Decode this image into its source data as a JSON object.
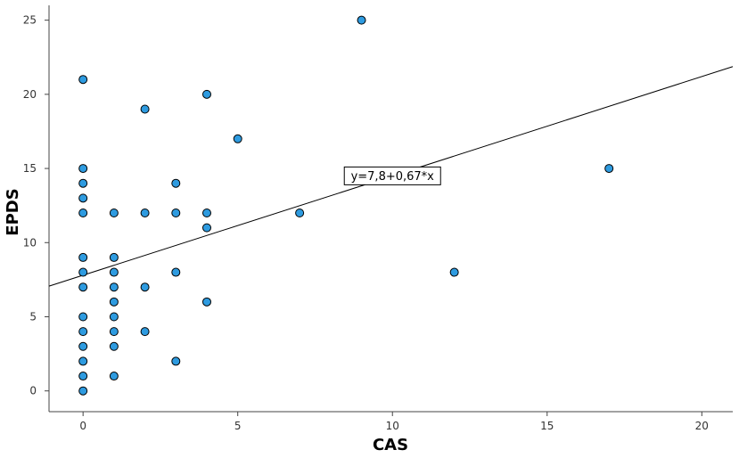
{
  "chart_data": {
    "type": "scatter",
    "xlabel": "CAS",
    "ylabel": "EPDS",
    "xlim": [
      -1.1,
      21
    ],
    "ylim": [
      -1.4,
      26
    ],
    "xticks": [
      0,
      5,
      10,
      15,
      20
    ],
    "yticks": [
      0,
      5,
      10,
      15,
      20,
      25
    ],
    "grid": false,
    "point_color": "#2E9BE0",
    "fit": {
      "label": "y=7,8+0,67*x",
      "intercept": 7.8,
      "slope": 0.67,
      "label_anchor": [
        10,
        14.5
      ]
    },
    "points": [
      {
        "x": 0,
        "y": 0
      },
      {
        "x": 0,
        "y": 1
      },
      {
        "x": 0,
        "y": 2
      },
      {
        "x": 0,
        "y": 3
      },
      {
        "x": 0,
        "y": 4
      },
      {
        "x": 0,
        "y": 5
      },
      {
        "x": 0,
        "y": 7
      },
      {
        "x": 0,
        "y": 8
      },
      {
        "x": 0,
        "y": 9
      },
      {
        "x": 0,
        "y": 12
      },
      {
        "x": 0,
        "y": 13
      },
      {
        "x": 0,
        "y": 14
      },
      {
        "x": 0,
        "y": 15
      },
      {
        "x": 0,
        "y": 21
      },
      {
        "x": 1,
        "y": 1
      },
      {
        "x": 1,
        "y": 3
      },
      {
        "x": 1,
        "y": 4
      },
      {
        "x": 1,
        "y": 5
      },
      {
        "x": 1,
        "y": 6
      },
      {
        "x": 1,
        "y": 7
      },
      {
        "x": 1,
        "y": 8
      },
      {
        "x": 1,
        "y": 9
      },
      {
        "x": 1,
        "y": 12
      },
      {
        "x": 2,
        "y": 4
      },
      {
        "x": 2,
        "y": 7
      },
      {
        "x": 2,
        "y": 12
      },
      {
        "x": 2,
        "y": 19
      },
      {
        "x": 3,
        "y": 2
      },
      {
        "x": 3,
        "y": 8
      },
      {
        "x": 3,
        "y": 12
      },
      {
        "x": 3,
        "y": 14
      },
      {
        "x": 4,
        "y": 6
      },
      {
        "x": 4,
        "y": 11
      },
      {
        "x": 4,
        "y": 12
      },
      {
        "x": 4,
        "y": 20
      },
      {
        "x": 5,
        "y": 17
      },
      {
        "x": 7,
        "y": 12
      },
      {
        "x": 9,
        "y": 25
      },
      {
        "x": 12,
        "y": 8
      },
      {
        "x": 17,
        "y": 15
      }
    ]
  }
}
